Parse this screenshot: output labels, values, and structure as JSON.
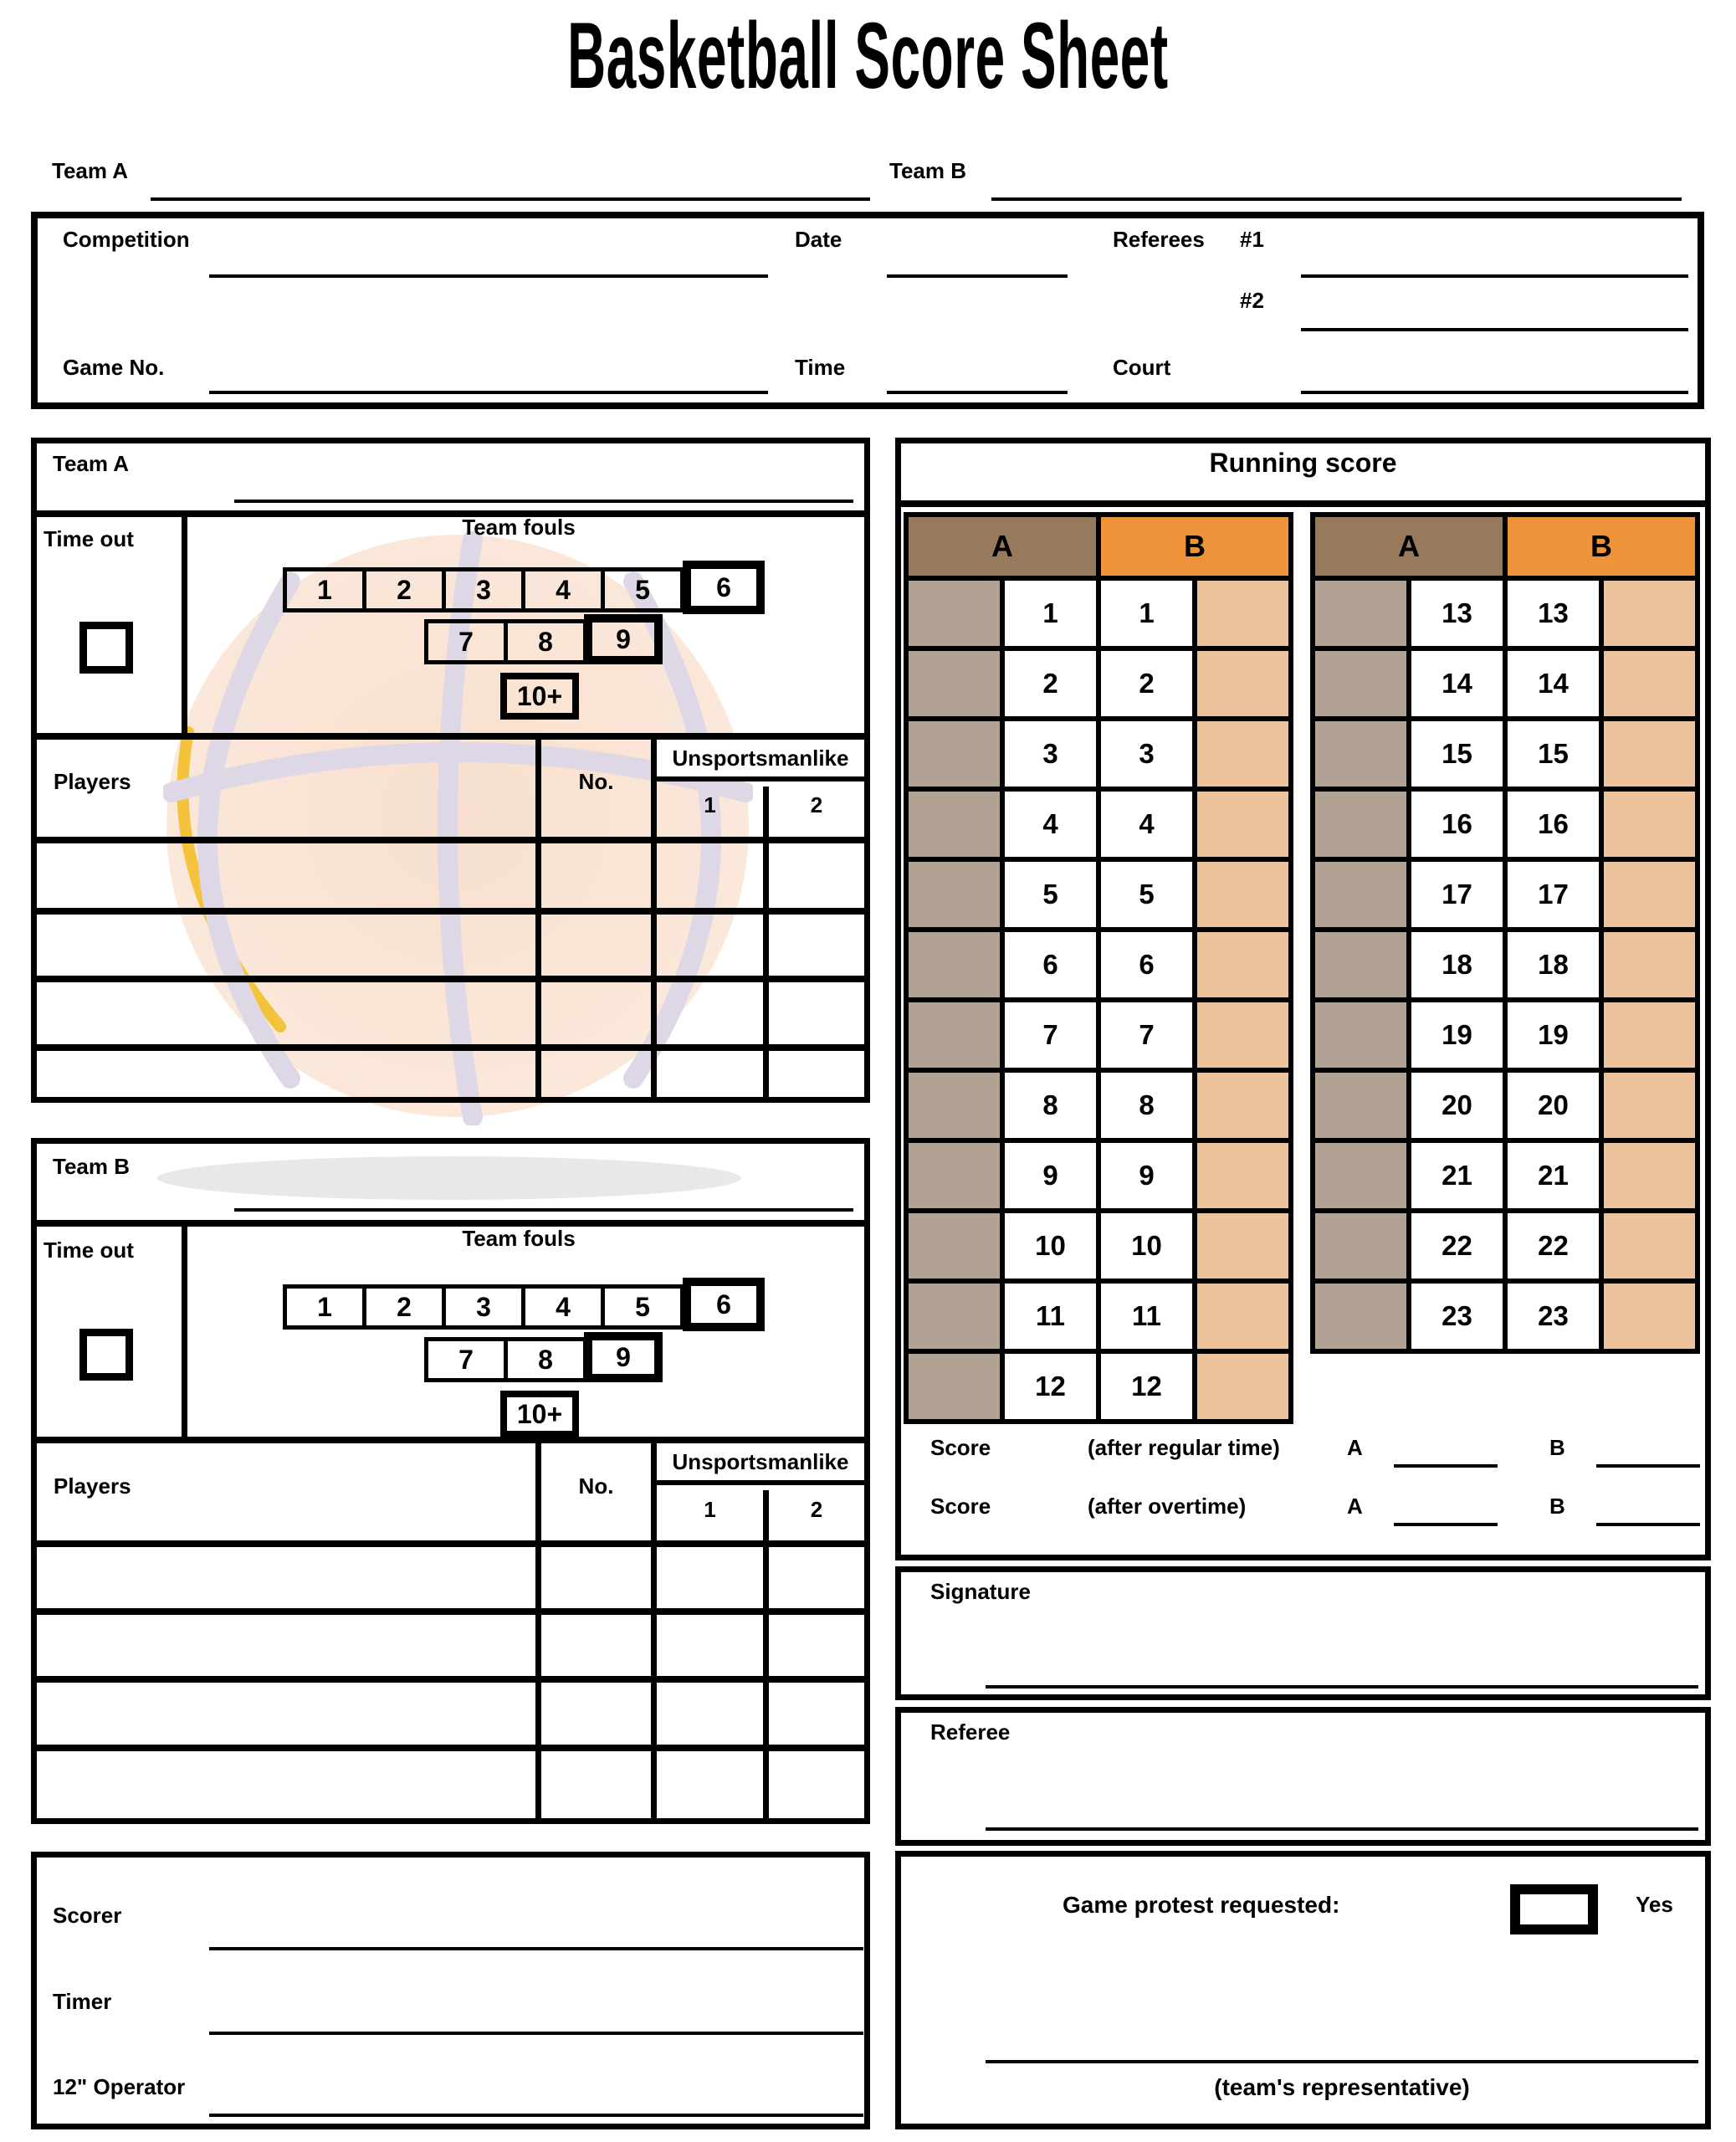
{
  "title": "Basketball Score Sheet",
  "colors": {
    "header_a": "#97795b",
    "header_b": "#ee9339",
    "blank_a": "#b2a294",
    "blank_b": "#ecc39a",
    "ball_fill": "#fbe9dc",
    "ball_fill_center": "#f8dfcd",
    "ball_seam": "#ded7e6",
    "ball_shadow": "#e9e7ea",
    "ball_accent": "#f5c33b"
  },
  "top": {
    "team_a_label": "Team A",
    "team_b_label": "Team B"
  },
  "game_info": {
    "competition": "Competition",
    "date": "Date",
    "referees": "Referees",
    "referee1": "#1",
    "referee2": "#2",
    "game_no": "Game No.",
    "time": "Time",
    "court": "Court"
  },
  "team_a": {
    "name_label": "Team A",
    "timeout_label": "Time out",
    "fouls_title": "Team fouls",
    "fouls_row1": [
      "1",
      "2",
      "3",
      "4",
      "5"
    ],
    "fouls_row1_bonus": "6",
    "fouls_row2": [
      "7",
      "8"
    ],
    "fouls_row2_bonus": "9",
    "fouls_extra": "10+",
    "players_label": "Players",
    "number_label": "No.",
    "unsportsmanlike_label": "Unsportsmanlike",
    "unsportsmanlike_cols": [
      "1",
      "2"
    ]
  },
  "team_b": {
    "name_label": "Team B",
    "timeout_label": "Time out",
    "fouls_title": "Team fouls",
    "fouls_row1": [
      "1",
      "2",
      "3",
      "4",
      "5"
    ],
    "fouls_row1_bonus": "6",
    "fouls_row2": [
      "7",
      "8"
    ],
    "fouls_row2_bonus": "9",
    "fouls_extra": "10+",
    "players_label": "Players",
    "number_label": "No.",
    "unsportsmanlike_label": "Unsportsmanlike",
    "unsportsmanlike_cols": [
      "1",
      "2"
    ]
  },
  "running_score": {
    "title": "Running score",
    "team_a_header": "A",
    "team_b_header": "B",
    "left_numbers": [
      "1",
      "2",
      "3",
      "4",
      "5",
      "6",
      "7",
      "8",
      "9",
      "10",
      "11",
      "12"
    ],
    "right_numbers": [
      "13",
      "14",
      "15",
      "16",
      "17",
      "18",
      "19",
      "20",
      "21",
      "22",
      "23"
    ]
  },
  "score_summary": {
    "row1": {
      "label": "Score",
      "qualifier": "(after regular time)",
      "a": "A",
      "b": "B"
    },
    "row2": {
      "label": "Score",
      "qualifier": "(after overtime)",
      "a": "A",
      "b": "B"
    }
  },
  "signature_label": "Signature",
  "referee_label": "Referee",
  "protest": {
    "label": "Game protest requested:",
    "yes_label": "Yes",
    "note": "(team's representative)"
  },
  "officials": {
    "scorer": "Scorer",
    "timer": "Timer",
    "operator": "12\" Operator"
  }
}
